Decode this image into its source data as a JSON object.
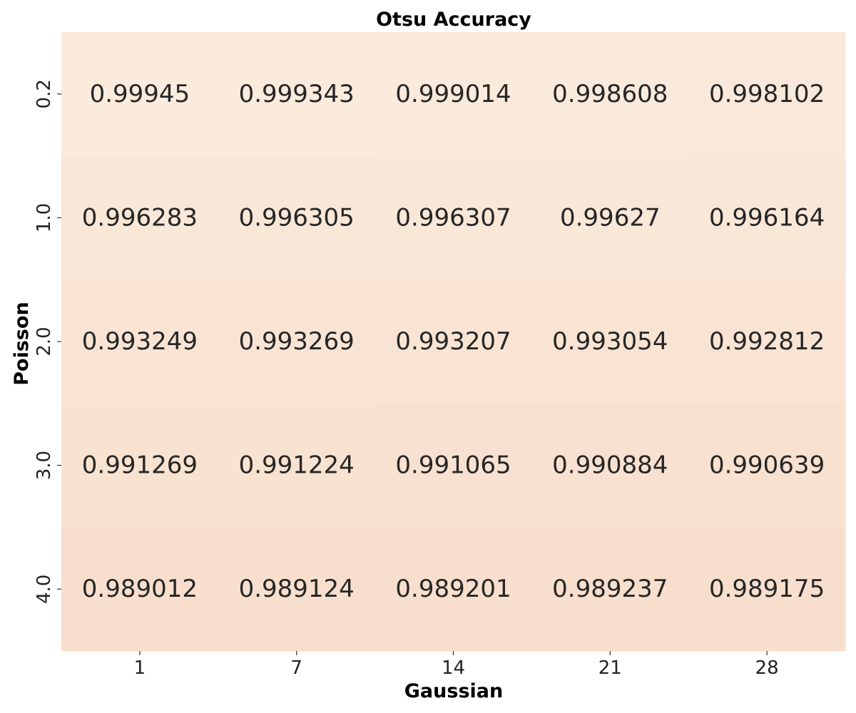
{
  "chart_data": {
    "type": "heatmap",
    "title": "Otsu Accuracy",
    "xlabel": "Gaussian",
    "ylabel": "Poisson",
    "x_categories": [
      "1",
      "7",
      "14",
      "21",
      "28"
    ],
    "y_categories": [
      "0.2",
      "1.0",
      "2.0",
      "3.0",
      "4.0"
    ],
    "values": [
      [
        0.99945,
        0.999343,
        0.999014,
        0.998608,
        0.998102
      ],
      [
        0.996283,
        0.996305,
        0.996307,
        0.99627,
        0.996164
      ],
      [
        0.993249,
        0.993269,
        0.993207,
        0.993054,
        0.992812
      ],
      [
        0.991269,
        0.991224,
        0.991065,
        0.990884,
        0.990639
      ],
      [
        0.989012,
        0.989124,
        0.989201,
        0.989237,
        0.989175
      ]
    ],
    "value_labels": [
      [
        "0.99945",
        "0.999343",
        "0.999014",
        "0.998608",
        "0.998102"
      ],
      [
        "0.996283",
        "0.996305",
        "0.996307",
        "0.99627",
        "0.996164"
      ],
      [
        "0.993249",
        "0.993269",
        "0.993207",
        "0.993054",
        "0.992812"
      ],
      [
        "0.991269",
        "0.991224",
        "0.991065",
        "0.990884",
        "0.990639"
      ],
      [
        "0.989012",
        "0.989124",
        "0.989201",
        "0.989237",
        "0.989175"
      ]
    ],
    "color_low": "#f8dfcd",
    "color_high": "#faebdd",
    "annotation_color": "#262626",
    "colorbar": false,
    "grid": false
  }
}
